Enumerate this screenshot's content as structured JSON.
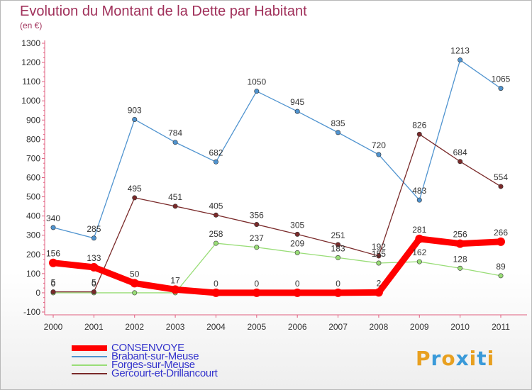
{
  "title": "Evolution du Montant de la Dette par Habitant",
  "unit": "(en €)",
  "brand": "Proxiti",
  "brand_colors": [
    "#e8a020",
    "#3a9ad9",
    "#e8a020",
    "#3a9ad9",
    "#e8a020",
    "#3a9ad9",
    "#e8a020"
  ],
  "chart_data": {
    "type": "line",
    "x": [
      "2000",
      "2001",
      "2002",
      "2003",
      "2004",
      "2005",
      "2006",
      "2007",
      "2008",
      "2009",
      "2010",
      "2011"
    ],
    "ylim": [
      -100,
      1300
    ],
    "yticks": [
      -100,
      0,
      100,
      200,
      300,
      400,
      500,
      600,
      700,
      800,
      900,
      1000,
      1100,
      1200,
      1300
    ],
    "grid": false,
    "legend_position": "bottom-left",
    "series": [
      {
        "name": "CONSENVOYE",
        "color": "#ff0000",
        "label_color": "#3333cc",
        "values": [
          156,
          133,
          50,
          17,
          0,
          0,
          0,
          0,
          2,
          281,
          256,
          266
        ],
        "labels": [
          "156",
          "133",
          "50",
          "17",
          "0",
          "0",
          "0",
          "0",
          "2",
          "281",
          "256",
          "266"
        ]
      },
      {
        "name": "Brabant-sur-Meuse",
        "color": "#4f93cf",
        "label_color": "#3333cc",
        "values": [
          340,
          285,
          903,
          784,
          682,
          1050,
          945,
          835,
          720,
          483,
          1213,
          1065
        ],
        "labels": [
          "340",
          "285",
          "903",
          "784",
          "682",
          "1050",
          "945",
          "835",
          "720",
          "483",
          "1213",
          "1065"
        ]
      },
      {
        "name": "Forges-sur-Meuse",
        "color": "#99dd77",
        "label_color": "#3333cc",
        "values": [
          0,
          0,
          0,
          0,
          258,
          237,
          209,
          183,
          155,
          162,
          128,
          89
        ],
        "labels": [
          "0",
          "0",
          "",
          "",
          "258",
          "237",
          "209",
          "183",
          "155",
          "162",
          "128",
          "89"
        ]
      },
      {
        "name": "Gercourt-et-Drillancourt",
        "color": "#7a2a2a",
        "label_color": "#3333cc",
        "values": [
          5,
          5,
          495,
          451,
          405,
          356,
          305,
          251,
          192,
          826,
          684,
          554
        ],
        "labels": [
          "5",
          "5",
          "495",
          "451",
          "405",
          "356",
          "305",
          "251",
          "192",
          "826",
          "684",
          "554"
        ]
      }
    ]
  }
}
